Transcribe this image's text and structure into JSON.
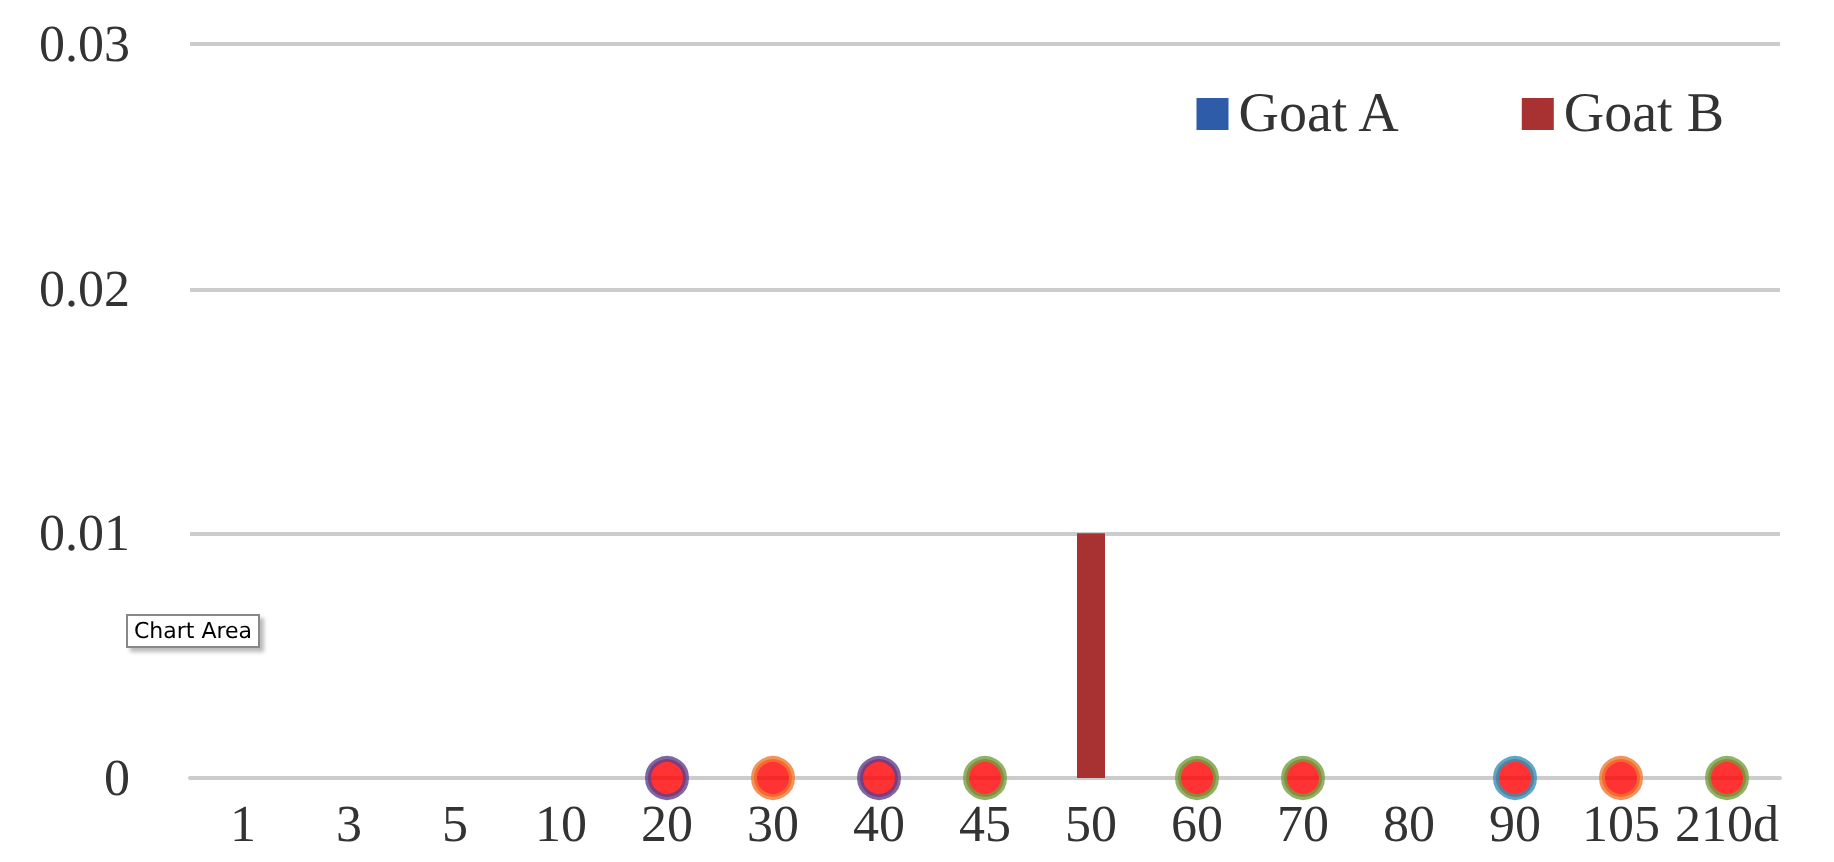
{
  "chart_data": {
    "type": "bar",
    "categories": [
      "1",
      "3",
      "5",
      "10",
      "20",
      "30",
      "40",
      "45",
      "50",
      "60",
      "70",
      "80",
      "90",
      "105",
      "210d"
    ],
    "series": [
      {
        "name": "Goat A",
        "color": "#2e5ca8",
        "values": [
          0,
          0,
          0,
          0,
          0,
          0,
          0,
          0,
          0,
          0,
          0,
          0,
          0,
          0,
          0
        ]
      },
      {
        "name": "Goat B",
        "color": "#a83232",
        "values": [
          0,
          0,
          0,
          0,
          0,
          0,
          0,
          0,
          0.01,
          0,
          0,
          0,
          0,
          0,
          0
        ]
      },
      {
        "type": "scatter",
        "color": "#ff0000",
        "x": [
          "20",
          "30",
          "40",
          "45",
          "60",
          "70",
          "90",
          "105",
          "210d"
        ],
        "values": [
          0,
          0,
          0,
          0,
          0,
          0,
          0,
          0,
          0
        ],
        "colors": [
          "#5e3f8c",
          "#f07830",
          "#5e3f8c",
          "#72a040",
          "#72a040",
          "#72a040",
          "#3590b8",
          "#f07830",
          "#72a040"
        ]
      }
    ],
    "ylim": [
      0,
      0.03
    ],
    "yticks": [
      0,
      0.01,
      0.02,
      0.03
    ],
    "grid": "y",
    "legend": "top right",
    "marker": "circle",
    "annotations": [
      "Chart Area"
    ]
  }
}
